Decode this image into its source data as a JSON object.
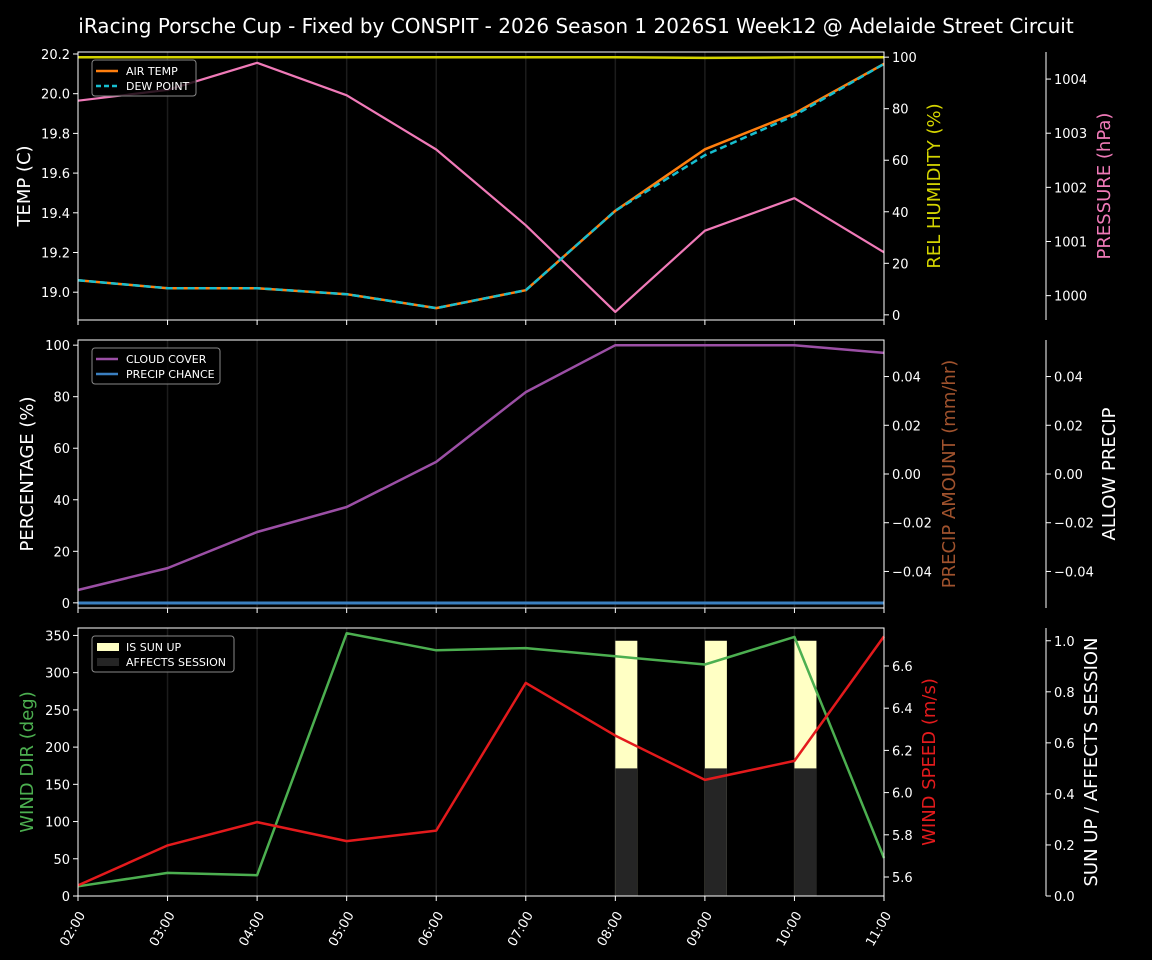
{
  "title": "iRacing Porsche Cup - Fixed by CONSPIT - 2026 Season 1 2026S1 Week12 @ Adelaide Street Circuit",
  "colors": {
    "background": "#000000",
    "air_temp": "#ff7f0e",
    "dew_point": "#17becf",
    "humidity": "#d4d400",
    "pressure": "#f07ab8",
    "cloud_cover": "#9b4fa5",
    "precip_chance": "#3a7fc0",
    "precip_amount_label": "#a0522d",
    "wind_dir": "#4caf50",
    "wind_speed": "#e31a1c",
    "sun_up": "#ffffc4",
    "affects_session": "#252525"
  },
  "chart_data": [
    {
      "type": "line",
      "title": "Temperature / Humidity / Pressure",
      "x": [
        "02:00",
        "03:00",
        "04:00",
        "05:00",
        "06:00",
        "07:00",
        "08:00",
        "09:00",
        "10:00",
        "11:00"
      ],
      "ylabel": "TEMP (C)",
      "ylim": [
        18.86,
        20.21
      ],
      "yticks": [
        19.0,
        19.2,
        19.4,
        19.6,
        19.8,
        20.0,
        20.2
      ],
      "ylabel_right": "REL HUMIDITY (%)",
      "ylim_right": [
        -2,
        102
      ],
      "yticks_right": [
        0,
        20,
        40,
        60,
        80,
        100
      ],
      "ylabel_right2": "PRESSURE (hPa)",
      "ylim_right2": [
        999.55,
        1004.5
      ],
      "yticks_right2": [
        1000,
        1001,
        1002,
        1003,
        1004
      ],
      "legend": [
        "AIR TEMP",
        "DEW POINT"
      ],
      "legend_position": "upper left",
      "series": [
        {
          "name": "AIR TEMP",
          "axis": "left",
          "values": [
            19.06,
            19.02,
            19.02,
            18.99,
            18.92,
            19.01,
            19.41,
            19.72,
            19.9,
            20.15
          ]
        },
        {
          "name": "DEW POINT",
          "axis": "left",
          "style": "dashed",
          "values": [
            19.06,
            19.02,
            19.02,
            18.99,
            18.92,
            19.01,
            19.41,
            19.69,
            19.89,
            20.15
          ]
        },
        {
          "name": "REL HUMIDITY",
          "axis": "right",
          "values": [
            100,
            100,
            100,
            100,
            100,
            100,
            100,
            99.7,
            99.9,
            100
          ]
        },
        {
          "name": "PRESSURE",
          "axis": "right2",
          "values": [
            1003.6,
            1003.8,
            1004.3,
            1003.7,
            1002.7,
            1001.3,
            999.7,
            1001.2,
            1001.8,
            1000.8
          ]
        }
      ]
    },
    {
      "type": "line",
      "title": "Cloud / Precipitation",
      "x": [
        "02:00",
        "03:00",
        "04:00",
        "05:00",
        "06:00",
        "07:00",
        "08:00",
        "09:00",
        "10:00",
        "11:00"
      ],
      "ylabel": "PERCENTAGE (%)",
      "ylim": [
        -2,
        102
      ],
      "yticks": [
        0,
        20,
        40,
        60,
        80,
        100
      ],
      "ylabel_right": "PRECIP AMOUNT (mm/hr)",
      "ylim_right": [
        -0.055,
        0.055
      ],
      "yticks_right": [
        "-0.04",
        "-0.02",
        "0.00",
        "0.02",
        "0.04"
      ],
      "ylabel_right2": "ALLOW PRECIP",
      "ylim_right2": [
        -0.055,
        0.055
      ],
      "yticks_right2": [
        "-0.04",
        "-0.02",
        "0.00",
        "0.02",
        "0.04"
      ],
      "legend": [
        "CLOUD COVER",
        "PRECIP CHANCE"
      ],
      "legend_position": "upper left",
      "series": [
        {
          "name": "CLOUD COVER",
          "axis": "left",
          "values": [
            5,
            13.5,
            27.5,
            37.2,
            54.7,
            81.8,
            100,
            100,
            100,
            97
          ]
        },
        {
          "name": "PRECIP CHANCE",
          "axis": "left",
          "values": [
            0,
            0,
            0,
            0,
            0,
            0,
            0,
            0,
            0,
            0
          ]
        }
      ]
    },
    {
      "type": "line",
      "title": "Wind / Sun",
      "x": [
        "02:00",
        "03:00",
        "04:00",
        "05:00",
        "06:00",
        "07:00",
        "08:00",
        "09:00",
        "10:00",
        "11:00"
      ],
      "xlabel_rotation": 60,
      "ylabel": "WIND DIR (deg)",
      "ylim": [
        0,
        360
      ],
      "yticks": [
        0,
        50,
        100,
        150,
        200,
        250,
        300,
        350
      ],
      "ylabel_right": "WIND SPEED (m/s)",
      "ylim_right": [
        5.51,
        6.78
      ],
      "yticks_right": [
        5.6,
        5.8,
        6.0,
        6.2,
        6.4,
        6.6
      ],
      "ylabel_right2": "SUN UP / AFFECTS SESSION",
      "ylim_right2": [
        0,
        1.05
      ],
      "yticks_right2": [
        "0.0",
        "0.2",
        "0.4",
        "0.6",
        "0.8",
        "1.0"
      ],
      "legend": [
        "IS SUN UP",
        "AFFECTS SESSION"
      ],
      "legend_position": "upper left",
      "series": [
        {
          "name": "WIND DIR",
          "axis": "left",
          "values": [
            13,
            31,
            28,
            353,
            330,
            333,
            322,
            311,
            348,
            51
          ]
        },
        {
          "name": "WIND SPEED",
          "axis": "right",
          "values": [
            5.56,
            5.75,
            5.86,
            5.77,
            5.82,
            6.52,
            6.27,
            6.06,
            6.15,
            6.74
          ]
        },
        {
          "name": "IS SUN UP",
          "type": "bar",
          "axis": "right2",
          "values": [
            0,
            0,
            0,
            0,
            0,
            0,
            1,
            1,
            1,
            0
          ]
        },
        {
          "name": "AFFECTS SESSION",
          "type": "bar",
          "axis": "right2",
          "values": [
            0,
            0,
            0,
            0,
            0,
            0,
            0.5,
            0.5,
            0.5,
            0
          ]
        }
      ]
    }
  ]
}
